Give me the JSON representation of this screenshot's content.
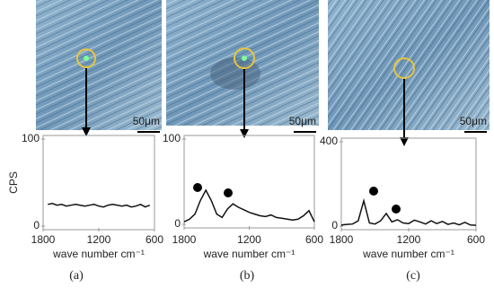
{
  "chart_data": [
    {
      "type": "line",
      "panel_label": "(a)",
      "scale_label": "50μm",
      "y_label": "CPS",
      "x_label": "wave number cm⁻¹",
      "xlim": [
        1800,
        600
      ],
      "xticks": [
        1800,
        1200,
        600
      ],
      "ylim": [
        0,
        100
      ],
      "yticks": [
        0,
        100
      ],
      "x": [
        1750,
        1700,
        1650,
        1600,
        1550,
        1500,
        1450,
        1400,
        1350,
        1300,
        1250,
        1200,
        1150,
        1100,
        1050,
        1000,
        950,
        900,
        850,
        800,
        750,
        700,
        650
      ],
      "series": [
        {
          "color": "#111111",
          "values": [
            25,
            26,
            24,
            25,
            23,
            24,
            25,
            24,
            23,
            24,
            25,
            23,
            22,
            24,
            25,
            24,
            23,
            24,
            22,
            23,
            25,
            22,
            24
          ]
        }
      ]
    },
    {
      "type": "line",
      "panel_label": "(b)",
      "scale_label": "50μm",
      "x_label": "wave number cm⁻¹",
      "xlim": [
        1800,
        600
      ],
      "xticks": [
        1800,
        1200,
        600
      ],
      "ylim": [
        0,
        100
      ],
      "yticks": [
        0,
        100
      ],
      "x": [
        1800,
        1750,
        1700,
        1650,
        1600,
        1550,
        1500,
        1450,
        1400,
        1350,
        1300,
        1250,
        1200,
        1150,
        1100,
        1050,
        1000,
        950,
        900,
        850,
        800,
        750,
        700,
        650,
        600
      ],
      "series": [
        {
          "color": "#111111",
          "values": [
            3,
            6,
            12,
            28,
            40,
            28,
            12,
            8,
            18,
            24,
            20,
            17,
            14,
            12,
            10,
            9,
            11,
            8,
            7,
            6,
            5,
            6,
            10,
            16,
            3
          ]
        }
      ]
    },
    {
      "type": "line",
      "panel_label": "(c)",
      "scale_label": "50μm",
      "x_label": "wave number cm⁻¹",
      "xlim": [
        1800,
        600
      ],
      "xticks": [
        1800,
        1200,
        600
      ],
      "ylim": [
        0,
        400
      ],
      "yticks": [
        0,
        400
      ],
      "x": [
        1800,
        1750,
        1700,
        1650,
        1600,
        1550,
        1500,
        1450,
        1400,
        1350,
        1300,
        1250,
        1200,
        1150,
        1100,
        1050,
        1000,
        950,
        900,
        850,
        800,
        750,
        700,
        650,
        600
      ],
      "series": [
        {
          "color": "#111111",
          "values": [
            5,
            8,
            10,
            25,
            120,
            15,
            10,
            25,
            60,
            20,
            30,
            15,
            12,
            28,
            20,
            10,
            25,
            12,
            22,
            8,
            15,
            6,
            18,
            5,
            4
          ]
        }
      ]
    }
  ]
}
